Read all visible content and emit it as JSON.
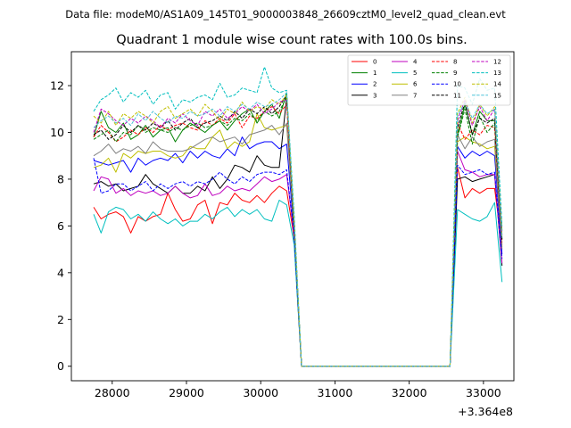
{
  "chart_data": {
    "type": "line",
    "suptitle": "Data file: modeM0/AS1A09_145T01_9000003848_26609cztM0_level2_quad_clean.evt",
    "title": "Quadrant 1 module wise count rates with 100.0s bins.",
    "xlabel": "",
    "ylabel": "",
    "offset_label": "+3.364e8",
    "xlim": [
      27450,
      33410
    ],
    "ylim": [
      -0.62,
      13.45
    ],
    "xticks": [
      28000,
      29000,
      30000,
      31000,
      32000,
      33000
    ],
    "yticks": [
      0,
      2,
      4,
      6,
      8,
      10,
      12
    ],
    "x_start": 27750,
    "bin": 100,
    "legend_position": "upper right",
    "series": [
      {
        "name": "0",
        "color": "#ff0000",
        "dash": false,
        "values": [
          6.8,
          6.3,
          6.5,
          6.6,
          6.4,
          5.7,
          6.4,
          6.2,
          6.4,
          6.5,
          7.4,
          6.7,
          6.2,
          6.3,
          6.9,
          7.1,
          6.1,
          7.0,
          6.9,
          7.4,
          7.1,
          7.0,
          7.3,
          7.0,
          7.4,
          7.7,
          7.5,
          5.5,
          0,
          0,
          0,
          0,
          0,
          0,
          0,
          0,
          0,
          0,
          0,
          0,
          0,
          0,
          0,
          0,
          0,
          0,
          0,
          0,
          0,
          8.5,
          7.2,
          7.6,
          7.4,
          7.6,
          7.6,
          5.2
        ]
      },
      {
        "name": "1",
        "color": "#008000",
        "dash": false,
        "values": [
          9.8,
          10.9,
          10.2,
          10.0,
          10.4,
          9.7,
          9.9,
          10.3,
          9.8,
          10.1,
          10.2,
          9.6,
          10.1,
          10.4,
          10.2,
          10.0,
          10.3,
          10.5,
          10.1,
          10.5,
          10.8,
          11.0,
          10.4,
          10.9,
          11.2,
          10.6,
          11.7,
          6.1,
          0,
          0,
          0,
          0,
          0,
          0,
          0,
          0,
          0,
          0,
          0,
          0,
          0,
          0,
          0,
          0,
          0,
          0,
          0,
          0,
          0,
          9.9,
          11.2,
          9.9,
          10.9,
          10.5,
          10.5,
          5.8
        ]
      },
      {
        "name": "2",
        "color": "#0000ff",
        "dash": false,
        "values": [
          8.8,
          8.7,
          8.6,
          8.7,
          8.8,
          8.3,
          8.9,
          8.6,
          8.8,
          8.9,
          8.8,
          9.1,
          8.7,
          9.2,
          8.9,
          9.2,
          9.0,
          8.9,
          9.3,
          9.0,
          9.8,
          9.3,
          9.5,
          9.6,
          9.6,
          9.3,
          9.5,
          5.7,
          0,
          0,
          0,
          0,
          0,
          0,
          0,
          0,
          0,
          0,
          0,
          0,
          0,
          0,
          0,
          0,
          0,
          0,
          0,
          0,
          0,
          9.4,
          8.9,
          9.2,
          9.0,
          9.2,
          9.0,
          4.8
        ]
      },
      {
        "name": "3",
        "color": "#000000",
        "dash": false,
        "values": [
          7.8,
          7.9,
          7.7,
          7.8,
          7.5,
          7.6,
          7.7,
          8.2,
          7.8,
          7.6,
          7.4,
          7.7,
          7.4,
          7.4,
          7.7,
          7.5,
          8.1,
          7.6,
          8.0,
          8.6,
          8.5,
          8.3,
          9.0,
          8.6,
          8.5,
          8.5,
          11.5,
          5.4,
          0,
          0,
          0,
          0,
          0,
          0,
          0,
          0,
          0,
          0,
          0,
          0,
          0,
          0,
          0,
          0,
          0,
          0,
          0,
          0,
          0,
          8.0,
          8.1,
          7.9,
          8.0,
          8.1,
          8.2,
          4.3
        ]
      },
      {
        "name": "4",
        "color": "#bf00bf",
        "dash": false,
        "values": [
          7.5,
          8.1,
          8.0,
          7.4,
          7.6,
          7.3,
          7.5,
          7.4,
          7.5,
          7.3,
          7.4,
          7.7,
          7.4,
          7.2,
          7.3,
          7.8,
          7.3,
          7.4,
          7.7,
          7.5,
          7.6,
          7.5,
          7.8,
          8.1,
          7.9,
          8.0,
          8.2,
          5.6,
          0,
          0,
          0,
          0,
          0,
          0,
          0,
          0,
          0,
          0,
          0,
          0,
          0,
          0,
          0,
          0,
          0,
          0,
          0,
          0,
          0,
          9.2,
          8.4,
          8.3,
          8.1,
          8.2,
          8.2,
          4.4
        ]
      },
      {
        "name": "5",
        "color": "#00bfbf",
        "dash": false,
        "values": [
          6.5,
          5.7,
          6.6,
          6.8,
          6.7,
          6.3,
          6.5,
          6.2,
          6.6,
          6.3,
          6.1,
          6.3,
          6.0,
          6.2,
          6.2,
          6.5,
          6.3,
          6.6,
          6.8,
          6.4,
          6.7,
          6.5,
          6.7,
          6.3,
          6.2,
          7.1,
          6.9,
          5.2,
          0,
          0,
          0,
          0,
          0,
          0,
          0,
          0,
          0,
          0,
          0,
          0,
          0,
          0,
          0,
          0,
          0,
          0,
          0,
          0,
          0,
          6.7,
          6.5,
          6.3,
          6.2,
          6.4,
          7.0,
          3.6
        ]
      },
      {
        "name": "6",
        "color": "#bfbf00",
        "dash": false,
        "values": [
          8.5,
          8.6,
          8.9,
          8.3,
          9.1,
          8.9,
          9.2,
          9.1,
          9.2,
          9.2,
          9.0,
          8.9,
          9.0,
          9.4,
          9.3,
          9.3,
          9.8,
          10.1,
          9.3,
          9.6,
          9.4,
          9.6,
          10.8,
          10.2,
          10.1,
          10.2,
          10.3,
          5.9,
          0,
          0,
          0,
          0,
          0,
          0,
          0,
          0,
          0,
          0,
          0,
          0,
          0,
          0,
          0,
          0,
          0,
          0,
          0,
          0,
          0,
          9.6,
          9.8,
          9.6,
          9.5,
          9.3,
          9.4,
          5.1
        ]
      },
      {
        "name": "7",
        "color": "#808080",
        "dash": false,
        "values": [
          9.0,
          9.2,
          9.5,
          9.1,
          9.3,
          9.2,
          9.4,
          9.1,
          9.6,
          9.3,
          9.2,
          9.2,
          9.2,
          9.3,
          9.5,
          9.7,
          9.8,
          9.6,
          9.7,
          9.8,
          9.5,
          9.9,
          10.0,
          10.1,
          10.3,
          9.9,
          10.4,
          5.9,
          0,
          0,
          0,
          0,
          0,
          0,
          0,
          0,
          0,
          0,
          0,
          0,
          0,
          0,
          0,
          0,
          0,
          0,
          0,
          0,
          0,
          9.9,
          9.3,
          9.8,
          9.4,
          9.6,
          9.7,
          5.0
        ]
      },
      {
        "name": "8",
        "color": "#ff0000",
        "dash": true,
        "values": [
          9.8,
          10.3,
          10.0,
          9.6,
          9.8,
          10.1,
          9.9,
          10.2,
          10.0,
          10.3,
          10.1,
          10.3,
          10.4,
          10.2,
          10.1,
          10.5,
          10.3,
          10.6,
          10.4,
          10.8,
          10.2,
          10.7,
          10.6,
          10.9,
          11.1,
          10.8,
          11.2,
          6.0,
          0,
          0,
          0,
          0,
          0,
          0,
          0,
          0,
          0,
          0,
          0,
          0,
          0,
          0,
          0,
          0,
          0,
          0,
          0,
          0,
          0,
          10.4,
          9.7,
          10.1,
          9.9,
          10.3,
          10.2,
          5.3
        ]
      },
      {
        "name": "9",
        "color": "#008000",
        "dash": true,
        "values": [
          9.7,
          9.9,
          10.1,
          9.6,
          10.0,
          9.9,
          10.3,
          10.0,
          10.2,
          10.1,
          10.0,
          10.2,
          10.1,
          10.3,
          10.4,
          10.2,
          10.3,
          10.5,
          10.3,
          10.6,
          10.5,
          10.8,
          10.5,
          10.9,
          10.7,
          10.9,
          11.5,
          6.0,
          0,
          0,
          0,
          0,
          0,
          0,
          0,
          0,
          0,
          0,
          0,
          0,
          0,
          0,
          0,
          0,
          0,
          0,
          0,
          0,
          0,
          9.8,
          11.0,
          9.5,
          10.7,
          10.0,
          10.4,
          5.4
        ]
      },
      {
        "name": "10",
        "color": "#0000ff",
        "dash": true,
        "values": [
          8.9,
          7.4,
          7.5,
          7.8,
          7.8,
          7.5,
          7.7,
          7.9,
          7.5,
          7.8,
          7.6,
          7.8,
          7.9,
          7.7,
          7.9,
          7.8,
          8.0,
          8.3,
          8.0,
          7.8,
          8.1,
          7.9,
          8.2,
          8.3,
          8.3,
          8.2,
          8.4,
          5.6,
          0,
          0,
          0,
          0,
          0,
          0,
          0,
          0,
          0,
          0,
          0,
          0,
          0,
          0,
          0,
          0,
          0,
          0,
          0,
          0,
          0,
          8.6,
          8.2,
          8.3,
          8.4,
          8.2,
          8.3,
          4.6
        ]
      },
      {
        "name": "11",
        "color": "#000000",
        "dash": true,
        "values": [
          9.9,
          10.1,
          9.7,
          9.9,
          10.3,
          10.0,
          10.3,
          10.1,
          10.4,
          10.2,
          10.5,
          10.1,
          10.4,
          10.6,
          10.2,
          10.4,
          10.5,
          10.7,
          10.5,
          10.9,
          10.6,
          11.0,
          10.8,
          11.1,
          10.8,
          11.1,
          11.6,
          6.0,
          0,
          0,
          0,
          0,
          0,
          0,
          0,
          0,
          0,
          0,
          0,
          0,
          0,
          0,
          0,
          0,
          0,
          0,
          0,
          0,
          0,
          10.2,
          11.3,
          9.9,
          10.6,
          10.4,
          10.6,
          5.4
        ]
      },
      {
        "name": "12",
        "color": "#bf00bf",
        "dash": true,
        "values": [
          10.0,
          11.0,
          10.8,
          10.5,
          10.3,
          10.6,
          10.4,
          10.7,
          10.5,
          10.2,
          10.6,
          10.4,
          10.8,
          10.5,
          10.3,
          10.9,
          10.7,
          11.0,
          10.6,
          10.8,
          11.1,
          10.9,
          11.2,
          10.8,
          11.0,
          11.3,
          11.4,
          6.3,
          0,
          0,
          0,
          0,
          0,
          0,
          0,
          0,
          0,
          0,
          0,
          0,
          0,
          0,
          0,
          0,
          0,
          0,
          0,
          0,
          0,
          10.5,
          11.4,
          10.3,
          11.1,
          10.5,
          11.0,
          5.6
        ]
      },
      {
        "name": "13",
        "color": "#00bfbf",
        "dash": true,
        "values": [
          10.9,
          11.4,
          11.6,
          11.9,
          11.3,
          11.7,
          11.5,
          11.8,
          11.2,
          11.6,
          11.7,
          11.0,
          11.4,
          11.3,
          11.5,
          11.6,
          11.4,
          12.1,
          11.5,
          11.6,
          11.9,
          11.8,
          11.7,
          12.8,
          11.9,
          11.7,
          11.8,
          6.5,
          0,
          0,
          0,
          0,
          0,
          0,
          0,
          0,
          0,
          0,
          0,
          0,
          0,
          0,
          0,
          0,
          0,
          0,
          0,
          0,
          0,
          12.0,
          11.9,
          11.2,
          12.3,
          11.8,
          11.9,
          6.0
        ]
      },
      {
        "name": "14",
        "color": "#bfbf00",
        "dash": true,
        "values": [
          10.7,
          10.4,
          10.9,
          10.3,
          10.8,
          10.6,
          10.9,
          10.7,
          10.4,
          10.9,
          11.1,
          10.6,
          10.8,
          11.0,
          10.7,
          11.2,
          10.9,
          10.5,
          11.0,
          10.8,
          11.3,
          10.9,
          11.1,
          11.0,
          11.4,
          11.2,
          11.6,
          6.2,
          0,
          0,
          0,
          0,
          0,
          0,
          0,
          0,
          0,
          0,
          0,
          0,
          0,
          0,
          0,
          0,
          0,
          0,
          0,
          0,
          0,
          10.8,
          11.5,
          10.4,
          11.2,
          10.7,
          11.1,
          5.6
        ]
      },
      {
        "name": "15",
        "color": "#4fc3d9",
        "dash": true,
        "values": [
          10.2,
          10.5,
          10.7,
          10.4,
          10.6,
          10.3,
          10.8,
          10.5,
          10.9,
          10.6,
          10.4,
          10.7,
          10.6,
          10.9,
          10.7,
          10.8,
          11.0,
          10.7,
          11.1,
          10.9,
          11.2,
          11.0,
          11.3,
          11.1,
          11.2,
          11.4,
          11.7,
          6.2,
          0,
          0,
          0,
          0,
          0,
          0,
          0,
          0,
          0,
          0,
          0,
          0,
          0,
          0,
          0,
          0,
          0,
          0,
          0,
          0,
          0,
          10.7,
          11.3,
          10.6,
          11.2,
          10.8,
          11.0,
          5.5
        ]
      }
    ]
  }
}
